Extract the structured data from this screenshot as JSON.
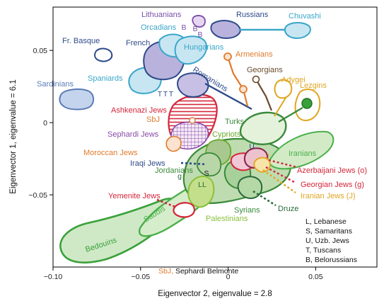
{
  "chart_data": {
    "type": "scatter",
    "title": "",
    "xlabel": "Eigenvector 2, eigenvalue = 2.8",
    "ylabel": "Eigenvector 1, eigenvalue = 6.1",
    "xlim": [
      -0.1,
      0.085
    ],
    "ylim": [
      -0.1,
      0.08
    ],
    "xticks": [
      -0.1,
      -0.05,
      0,
      0.05
    ],
    "xtick_labels": [
      "−0.10",
      "−0.05",
      "0",
      "0.05"
    ],
    "yticks": [
      -0.05,
      0,
      0.05
    ],
    "ytick_labels": [
      "−0.05",
      "0",
      "0.05"
    ],
    "populations": [
      {
        "name": "Lithuanians",
        "x": -0.003,
        "y": 0.068,
        "color": "#7b4fa8"
      },
      {
        "name": "Russians",
        "x": 0.014,
        "y": 0.066,
        "color": "#2e4a8a"
      },
      {
        "name": "Chuvashi",
        "x": 0.063,
        "y": 0.065,
        "color": "#3aa6c9"
      },
      {
        "name": "Orcadians",
        "x": -0.027,
        "y": 0.066,
        "color": "#3aa6c9"
      },
      {
        "name": "Fr. Basque",
        "x": -0.073,
        "y": 0.054,
        "color": "#2e4a8a"
      },
      {
        "name": "French",
        "x": -0.032,
        "y": 0.052,
        "color": "#2e4a8a"
      },
      {
        "name": "Hungarians",
        "x": 0.001,
        "y": 0.056,
        "color": "#3aa6c9"
      },
      {
        "name": "Armenians",
        "x": 0.022,
        "y": 0.047,
        "color": "#e07a2c"
      },
      {
        "name": "Sardinians",
        "x": -0.099,
        "y": 0.018,
        "color": "#5a7bb8"
      },
      {
        "name": "Spaniards",
        "x": -0.044,
        "y": 0.031,
        "color": "#3aa6c9"
      },
      {
        "name": "Romanians",
        "x": -0.005,
        "y": 0.034,
        "color": "#2e4a8a"
      },
      {
        "name": "Georgians",
        "x": 0.035,
        "y": 0.036,
        "color": "#6a4a2a"
      },
      {
        "name": "Adygei",
        "x": 0.052,
        "y": 0.03,
        "color": "#e0a520"
      },
      {
        "name": "Lezgins",
        "x": 0.066,
        "y": 0.02,
        "color": "#e0a520"
      },
      {
        "name": "Ashkenazi Jews",
        "x": -0.006,
        "y": 0.01,
        "color": "#d4263a"
      },
      {
        "name": "SbJ",
        "x": -0.035,
        "y": 0.006,
        "color": "#e07a2c"
      },
      {
        "name": "Turks",
        "x": 0.026,
        "y": 0.004,
        "color": "#3a8a3a"
      },
      {
        "name": "Sephardi Jews",
        "x": -0.014,
        "y": -0.004,
        "color": "#8a4aa8"
      },
      {
        "name": "Cypriots",
        "x": 0.012,
        "y": -0.004,
        "color": "#6aaa2a"
      },
      {
        "name": "Iranians",
        "x": 0.07,
        "y": -0.01,
        "color": "#4ab04a"
      },
      {
        "name": "Moroccan Jews",
        "x": -0.038,
        "y": -0.018,
        "color": "#e07a2c"
      },
      {
        "name": "Iraqi Jews",
        "x": 0.0,
        "y": -0.024,
        "color": "#2e4a8a"
      },
      {
        "name": "Jordanians",
        "x": -0.001,
        "y": -0.03,
        "color": "#3a8a3a"
      },
      {
        "name": "Azerbaijani Jews (o)",
        "x": 0.05,
        "y": -0.027,
        "color": "#d4263a"
      },
      {
        "name": "Georgian Jews (g)",
        "x": 0.046,
        "y": -0.03,
        "color": "#d4263a"
      },
      {
        "name": "Iranian Jews (J)",
        "x": 0.044,
        "y": -0.031,
        "color": "#e0a520"
      },
      {
        "name": "Yemenite Jews",
        "x": -0.013,
        "y": -0.054,
        "color": "#d4263a"
      },
      {
        "name": "Saudis",
        "x": -0.03,
        "y": -0.056,
        "color": "#4ab04a"
      },
      {
        "name": "Palestinians",
        "x": 0.01,
        "y": -0.044,
        "color": "#8ac03a"
      },
      {
        "name": "Syrians",
        "x": 0.03,
        "y": -0.04,
        "color": "#3a8a3a"
      },
      {
        "name": "Druze",
        "x": 0.035,
        "y": -0.046,
        "color": "#2a6a3a"
      },
      {
        "name": "Bedouins",
        "x": -0.066,
        "y": -0.076,
        "color": "#4ab04a"
      }
    ],
    "point_labels": [
      "T",
      "T",
      "T",
      "B",
      "B",
      "B",
      "U",
      "g",
      "S",
      "LL",
      "J"
    ],
    "legend": {
      "title_lines": [
        {
          "abbr": "L,",
          "text": "Lebanese"
        },
        {
          "abbr": "S,",
          "text": "Samaritans"
        },
        {
          "abbr": "U,",
          "text": "Uzb. Jews"
        },
        {
          "abbr": "T,",
          "text": "Tuscans"
        },
        {
          "abbr": "B,",
          "text": "Belorussians"
        }
      ],
      "footer": {
        "abbr": "SbJ,",
        "text": "Sephardi Belmonte"
      }
    }
  }
}
